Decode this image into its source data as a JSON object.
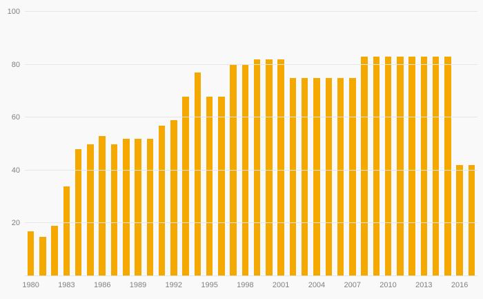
{
  "chart_data": {
    "type": "bar",
    "title": "",
    "xlabel": "",
    "ylabel": "",
    "x": [
      1980,
      1981,
      1982,
      1983,
      1984,
      1985,
      1986,
      1987,
      1988,
      1989,
      1990,
      1991,
      1992,
      1993,
      1994,
      1995,
      1996,
      1997,
      1998,
      1999,
      2000,
      2001,
      2002,
      2003,
      2004,
      2005,
      2006,
      2007,
      2008,
      2009,
      2010,
      2011,
      2012,
      2013,
      2014,
      2015,
      2016,
      2017
    ],
    "values": [
      17,
      15,
      19,
      34,
      48,
      50,
      53,
      50,
      52,
      52,
      52,
      57,
      59,
      68,
      77,
      68,
      68,
      80,
      80,
      82,
      82,
      82,
      75,
      75,
      75,
      75,
      75,
      75,
      83,
      83,
      83,
      83,
      83,
      83,
      83,
      83,
      42,
      42
    ],
    "ylim": [
      0,
      100
    ],
    "yticks": [
      0,
      20,
      40,
      60,
      80,
      100
    ],
    "ytick_labels_visible": [
      "20",
      "40",
      "60",
      "80",
      "100"
    ],
    "xtick_labels": [
      "1980",
      "1983",
      "1986",
      "1989",
      "1992",
      "1995",
      "1998",
      "2001",
      "2004",
      "2007",
      "2010",
      "2013",
      "2016"
    ],
    "xtick_interval": 3,
    "grid": true,
    "legend": "none",
    "bar_color": "#f5a800",
    "background_color": "#f9f9f9",
    "gridline_color": "#e6e6e6",
    "label_color": "#808080"
  }
}
